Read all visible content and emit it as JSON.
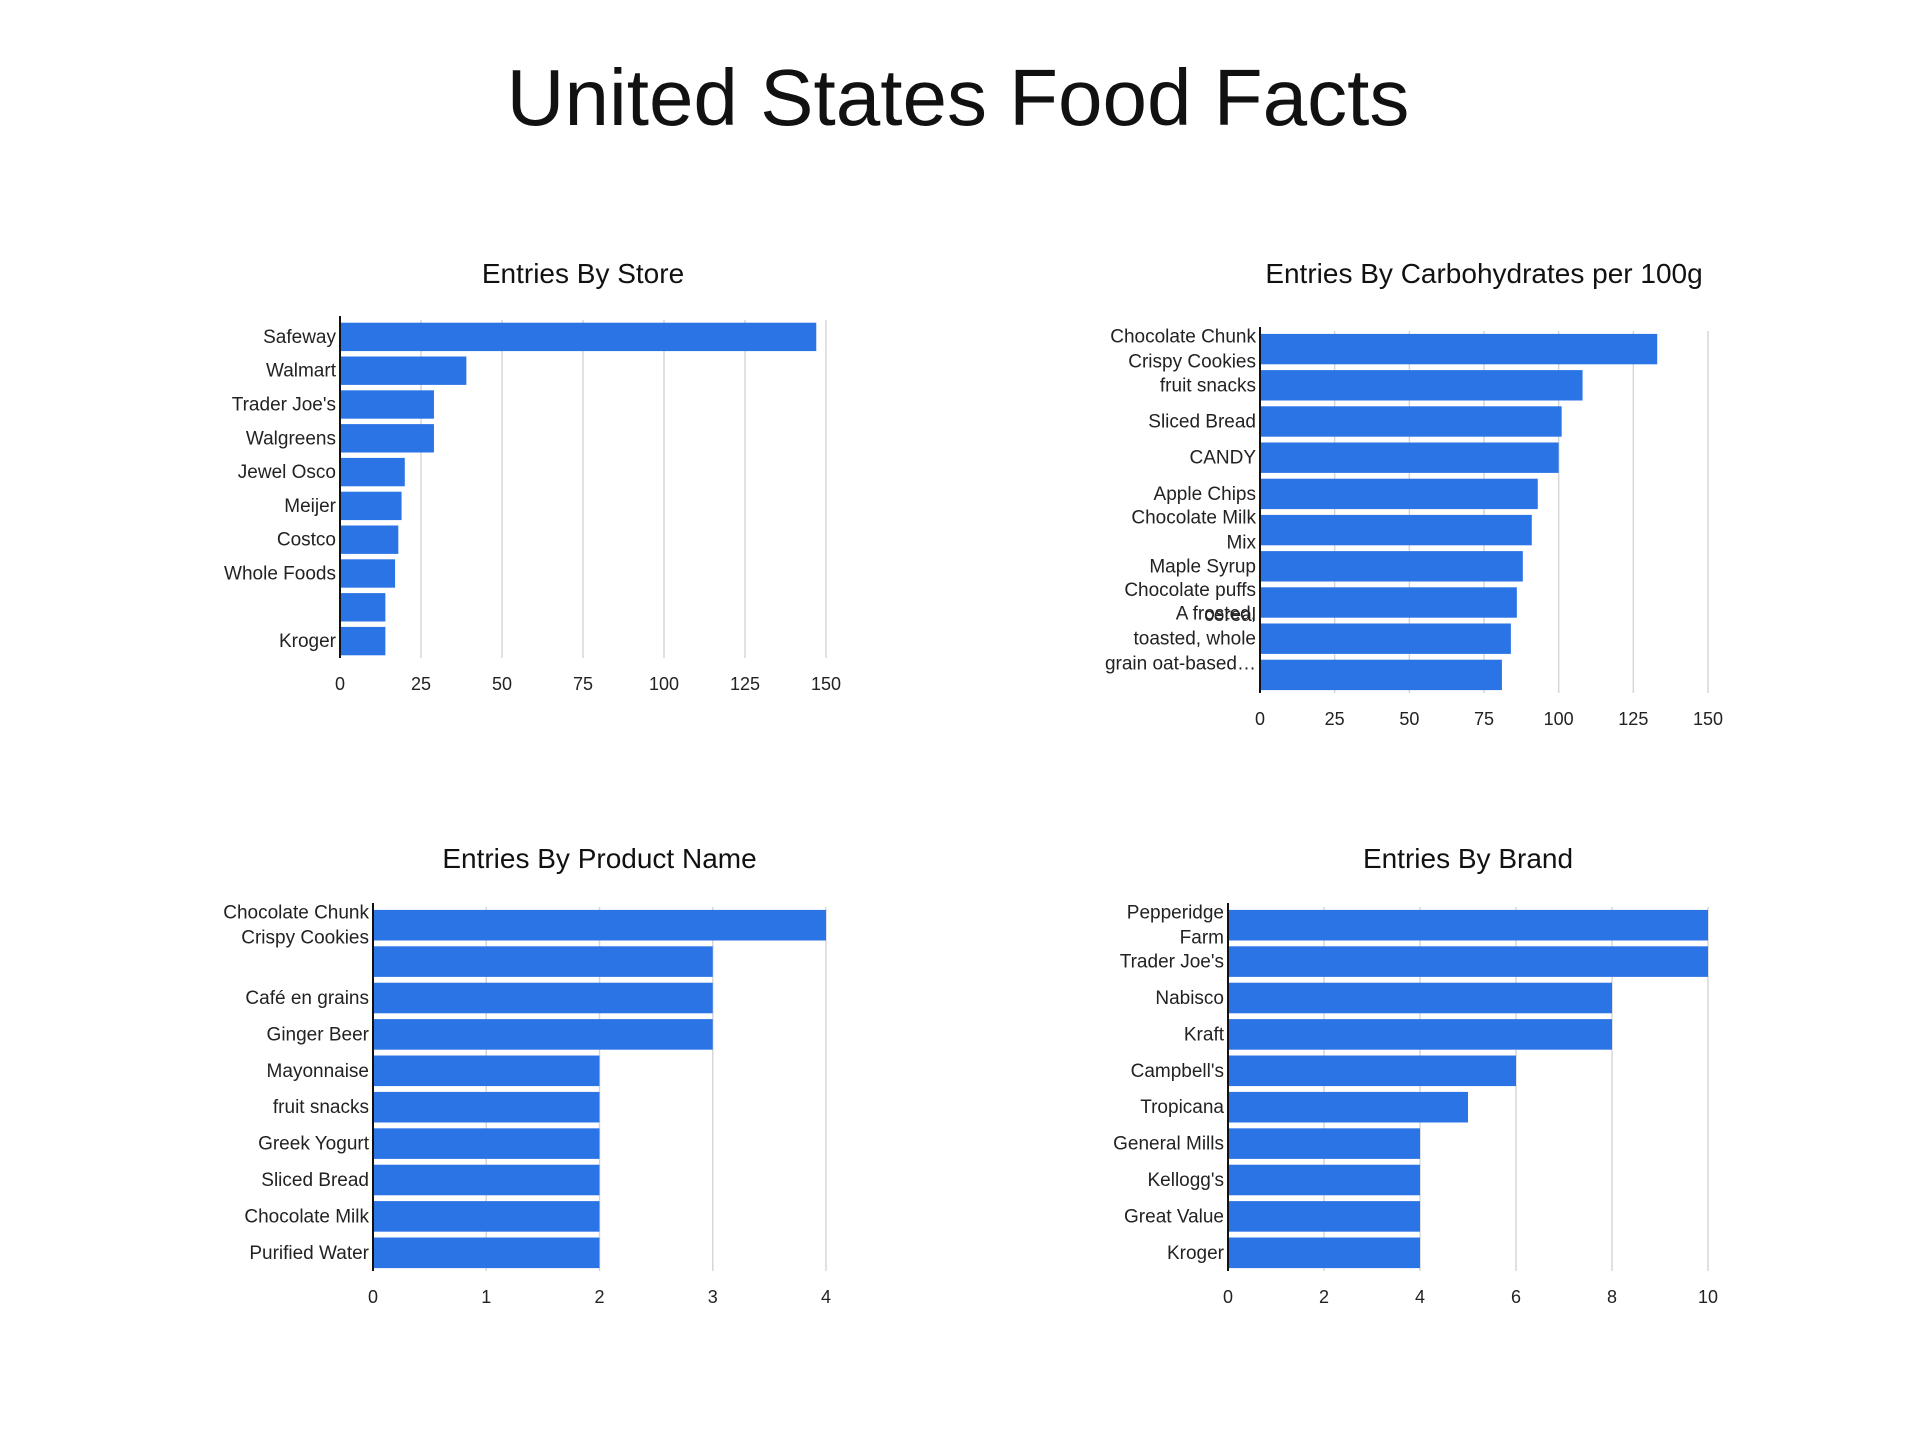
{
  "page": {
    "title": "United States Food Facts"
  },
  "theme": {
    "bar_color": "#2b74e6",
    "grid_color": "#d7d7d7"
  },
  "chart_data": [
    {
      "id": "store",
      "type": "bar",
      "orientation": "horizontal",
      "title": "Entries By Store",
      "categories": [
        "Safeway",
        "Walmart",
        "Trader Joe's",
        "Walgreens",
        "Jewel Osco",
        "Meijer",
        "Costco",
        "Whole Foods",
        "",
        "Kroger"
      ],
      "values": [
        147,
        39,
        29,
        29,
        20,
        19,
        18,
        17,
        14,
        14
      ],
      "xlim": [
        0,
        150
      ],
      "xticks": [
        0,
        25,
        50,
        75,
        100,
        125,
        150
      ],
      "grid": true
    },
    {
      "id": "carbs",
      "type": "bar",
      "orientation": "horizontal",
      "title": "Entries By Carbohydrates per 100g",
      "categories": [
        "Chocolate Chunk Crispy Cookies",
        "fruit snacks",
        "Sliced Bread",
        "CANDY",
        "Apple Chips",
        "Chocolate Milk Mix",
        "Maple Syrup",
        "Chocolate puffs cereal",
        "A frosted, toasted, whole grain oat-based…",
        ""
      ],
      "values": [
        133,
        108,
        101,
        100,
        93,
        91,
        88,
        86,
        84,
        81
      ],
      "xlim": [
        0,
        150
      ],
      "xticks": [
        0,
        25,
        50,
        75,
        100,
        125,
        150
      ],
      "grid": true
    },
    {
      "id": "product",
      "type": "bar",
      "orientation": "horizontal",
      "title": "Entries By Product Name",
      "categories": [
        "Chocolate Chunk Crispy Cookies",
        "",
        "Café en grains",
        "Ginger Beer",
        "Mayonnaise",
        "fruit snacks",
        "Greek Yogurt",
        "Sliced Bread",
        "Chocolate Milk",
        "Purified Water"
      ],
      "values": [
        4,
        3,
        3,
        3,
        2,
        2,
        2,
        2,
        2,
        2
      ],
      "xlim": [
        0,
        4
      ],
      "xticks": [
        0,
        1,
        2,
        3,
        4
      ],
      "grid": true
    },
    {
      "id": "brand",
      "type": "bar",
      "orientation": "horizontal",
      "title": "Entries By Brand",
      "categories": [
        "Pepperidge Farm",
        "Trader Joe's",
        "Nabisco",
        "Kraft",
        "Campbell's",
        "Tropicana",
        "General Mills",
        "Kellogg's",
        "Great Value",
        "Kroger"
      ],
      "values": [
        10,
        10,
        8,
        8,
        6,
        5,
        4,
        4,
        4,
        4
      ],
      "xlim": [
        0,
        10
      ],
      "xticks": [
        0,
        2,
        4,
        6,
        8,
        10
      ],
      "grid": true
    }
  ]
}
